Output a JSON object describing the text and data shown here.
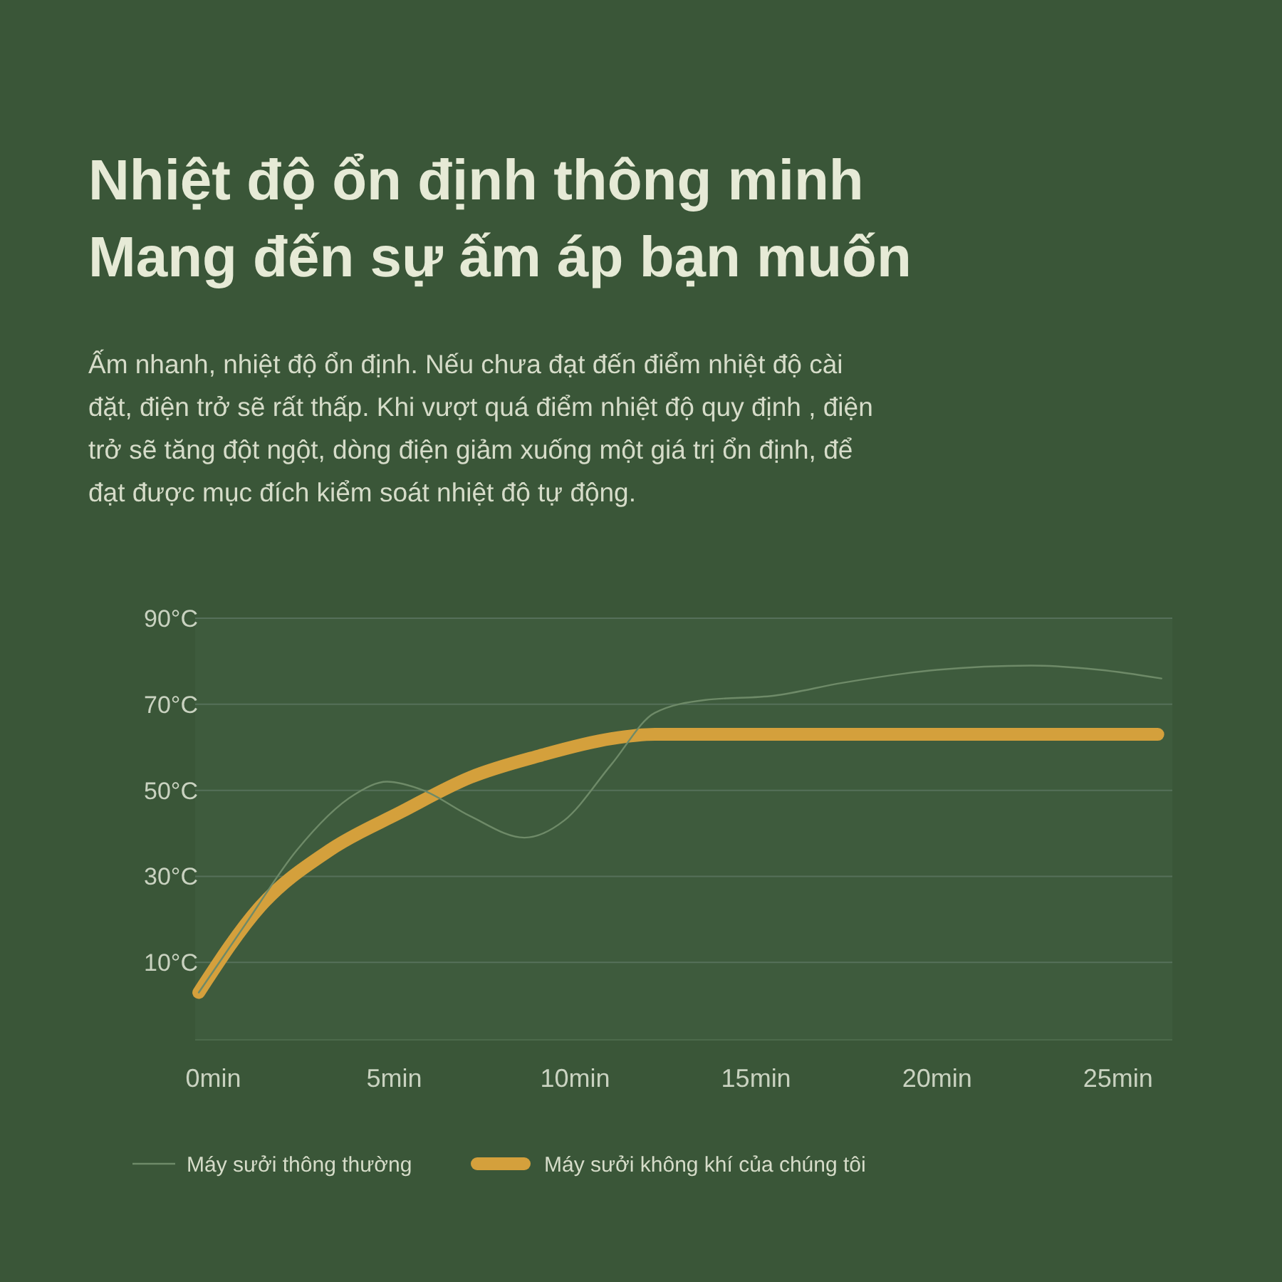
{
  "chart_data": {
    "type": "line",
    "title": "Nhiệt độ ổn định thông minh\nMang đến sự ấm áp bạn muốn",
    "subtitle": "Ấm nhanh, nhiệt độ ổn định. Nếu chưa đạt đến điểm nhiệt độ cài\nđặt, điện trở sẽ rất thấp. Khi vượt quá điểm nhiệt độ quy định , điện\ntrở sẽ tăng đột ngột, dòng điện giảm xuống một giá trị ổn định, để\nđạt được mục đích kiểm soát nhiệt độ tự động.",
    "xlim": [
      -0.5,
      26.5
    ],
    "xticks": [
      {
        "value": 0,
        "label": "0min"
      },
      {
        "value": 5,
        "label": "5min"
      },
      {
        "value": 10,
        "label": "10min"
      },
      {
        "value": 15,
        "label": "15min"
      },
      {
        "value": 20,
        "label": "20min"
      },
      {
        "value": 25,
        "label": "25min"
      }
    ],
    "ylim": [
      -8,
      90
    ],
    "yticks": [
      {
        "value": 10,
        "label": "10°C"
      },
      {
        "value": 30,
        "label": "30°C"
      },
      {
        "value": 50,
        "label": "50°C"
      },
      {
        "value": 70,
        "label": "70°C"
      },
      {
        "value": 90,
        "label": "90°C"
      }
    ],
    "grid": "y",
    "legend": "bottom left",
    "marker": "none",
    "series": [
      {
        "name": "Máy sưởi thông thường",
        "color": "#6e8a68",
        "x": [
          -0.4,
          0.9,
          2.3,
          3.9,
          4.8,
          5.8,
          7.1,
          8.6,
          9.7,
          11.0,
          12.2,
          13.6,
          15.5,
          17.4,
          20,
          22.6,
          24.5,
          26.2
        ],
        "values": [
          3,
          19,
          36,
          49,
          52,
          50,
          44,
          39,
          43,
          56,
          68,
          71,
          72,
          75,
          78,
          79,
          78,
          76
        ]
      },
      {
        "name": "Máy sưởi không khí của chúng tôi",
        "color": "#d4a03c",
        "x": [
          -0.4,
          1.3,
          3.2,
          5.2,
          7.1,
          9.0,
          11.0,
          12.2,
          15,
          20,
          26.1
        ],
        "values": [
          3,
          23,
          36,
          45,
          53,
          58,
          62,
          63,
          63,
          63,
          63
        ]
      }
    ]
  }
}
